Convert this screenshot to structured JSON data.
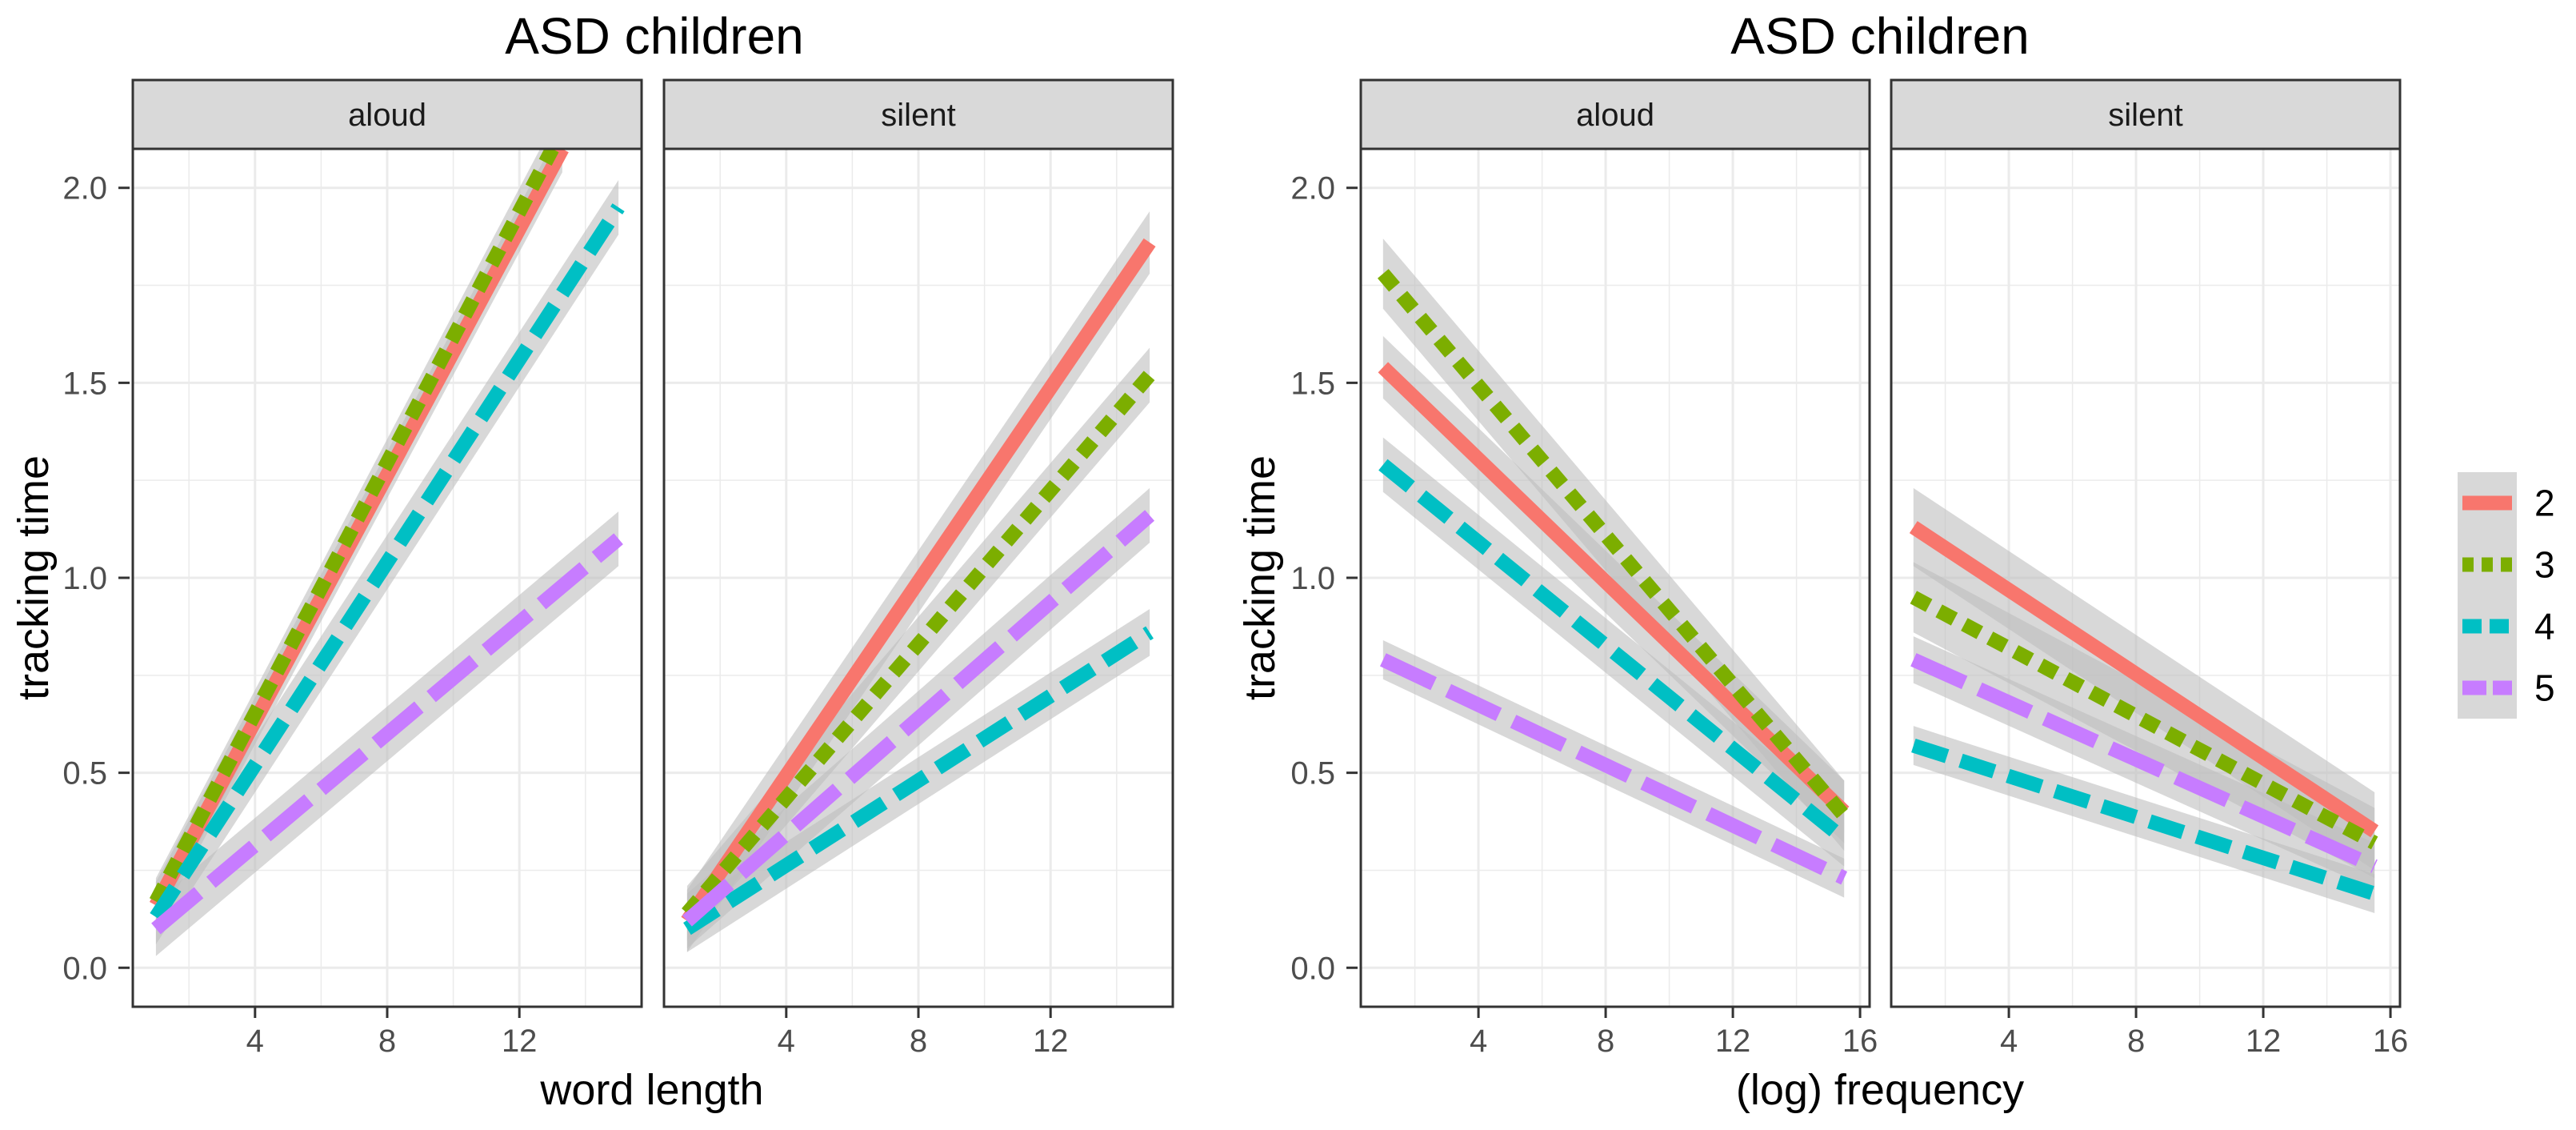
{
  "colors": {
    "2": "#F8766D",
    "3": "#7CAE00",
    "4": "#00BFC4",
    "5": "#C77CFF",
    "panel_border": "#333333",
    "strip_fill": "#D9D9D9",
    "grid_major": "#EBEBEB",
    "ribbon": "#BEBEBE"
  },
  "legend": {
    "entries": [
      {
        "label": "2",
        "color": "#F8766D",
        "linetype": "solid"
      },
      {
        "label": "3",
        "color": "#7CAE00",
        "linetype": "dotted"
      },
      {
        "label": "4",
        "color": "#00BFC4",
        "linetype": "dashed"
      },
      {
        "label": "5",
        "color": "#C77CFF",
        "linetype": "longdash"
      }
    ]
  },
  "chart_data": [
    {
      "type": "line",
      "title": "ASD children",
      "xlabel": "word length",
      "ylabel": "tracking time",
      "ylim": [
        -0.1,
        2.1
      ],
      "yticks": [
        0.0,
        0.5,
        1.0,
        1.5,
        2.0
      ],
      "ytick_labels": [
        "0.0",
        "0.5",
        "1.0",
        "1.5",
        "2.0"
      ],
      "xlim": [
        0.3,
        15.7
      ],
      "xticks": [
        4,
        8,
        12
      ],
      "xtick_labels": [
        "4",
        "8",
        "12"
      ],
      "facets": [
        {
          "label": "aloud",
          "series": [
            {
              "name": "2",
              "x": [
                1,
                13.3
              ],
              "y": [
                0.16,
                2.1
              ],
              "band": 0.06
            },
            {
              "name": "3",
              "x": [
                1,
                13.0
              ],
              "y": [
                0.17,
                2.1
              ],
              "band": 0.06
            },
            {
              "name": "4",
              "x": [
                1,
                15
              ],
              "y": [
                0.13,
                1.95
              ],
              "band": 0.07
            },
            {
              "name": "5",
              "x": [
                1,
                15
              ],
              "y": [
                0.1,
                1.1
              ],
              "band": 0.07
            }
          ]
        },
        {
          "label": "silent",
          "series": [
            {
              "name": "2",
              "x": [
                1,
                15
              ],
              "y": [
                0.12,
                1.86
              ],
              "band": 0.08
            },
            {
              "name": "3",
              "x": [
                1,
                15
              ],
              "y": [
                0.14,
                1.52
              ],
              "band": 0.07
            },
            {
              "name": "4",
              "x": [
                1,
                15
              ],
              "y": [
                0.1,
                0.86
              ],
              "band": 0.06
            },
            {
              "name": "5",
              "x": [
                1,
                15
              ],
              "y": [
                0.12,
                1.16
              ],
              "band": 0.07
            }
          ]
        }
      ]
    },
    {
      "type": "line",
      "title": "ASD children",
      "xlabel": "(log) frequency",
      "ylabel": "tracking time",
      "ylim": [
        -0.1,
        2.1
      ],
      "yticks": [
        0.0,
        0.5,
        1.0,
        1.5,
        2.0
      ],
      "ytick_labels": [
        "0.0",
        "0.5",
        "1.0",
        "1.5",
        "2.0"
      ],
      "xlim": [
        0.3,
        16.3
      ],
      "xticks": [
        4,
        8,
        12,
        16
      ],
      "xtick_labels": [
        "4",
        "8",
        "12",
        "16"
      ],
      "facets": [
        {
          "label": "aloud",
          "series": [
            {
              "name": "2",
              "x": [
                1,
                15.5
              ],
              "y": [
                1.54,
                0.4
              ],
              "band": 0.08
            },
            {
              "name": "3",
              "x": [
                1,
                15.5
              ],
              "y": [
                1.78,
                0.39
              ],
              "band": 0.09
            },
            {
              "name": "4",
              "x": [
                1,
                15.5
              ],
              "y": [
                1.29,
                0.33
              ],
              "band": 0.07
            },
            {
              "name": "5",
              "x": [
                1,
                15.5
              ],
              "y": [
                0.79,
                0.23
              ],
              "band": 0.05
            }
          ]
        },
        {
          "label": "silent",
          "series": [
            {
              "name": "2",
              "x": [
                1,
                15.5
              ],
              "y": [
                1.13,
                0.35
              ],
              "band": 0.1
            },
            {
              "name": "3",
              "x": [
                1,
                15.5
              ],
              "y": [
                0.95,
                0.32
              ],
              "band": 0.09
            },
            {
              "name": "4",
              "x": [
                1,
                15.5
              ],
              "y": [
                0.57,
                0.19
              ],
              "band": 0.05
            },
            {
              "name": "5",
              "x": [
                1,
                15.5
              ],
              "y": [
                0.79,
                0.26
              ],
              "band": 0.06
            }
          ]
        }
      ]
    }
  ]
}
